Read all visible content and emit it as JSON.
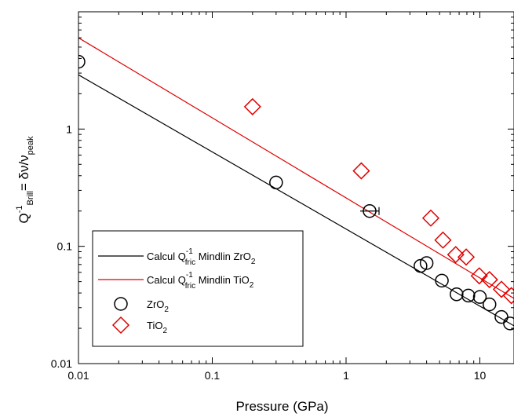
{
  "chart_data": {
    "type": "scatter",
    "title": "",
    "xlabel": "Pressure (GPa)",
    "ylabel": {
      "main": "Q",
      "sup": "-1",
      "sub": "Brill",
      "rest": "= δν/ν",
      "sub2": "peak"
    },
    "xscale": "log",
    "yscale": "log",
    "xlim": [
      0.01,
      18
    ],
    "ylim": [
      0.01,
      10
    ],
    "x_ticks": [
      {
        "value": 0.01,
        "label": "0.01"
      },
      {
        "value": 0.1,
        "label": "0.1"
      },
      {
        "value": 1,
        "label": "1"
      },
      {
        "value": 10,
        "label": "10"
      }
    ],
    "y_ticks": [
      {
        "value": 0.01,
        "label": "0.01"
      },
      {
        "value": 0.1,
        "label": "0.1"
      },
      {
        "value": 1,
        "label": "1"
      }
    ],
    "legend_position": "bottom-left",
    "series": [
      {
        "name": "Calcul Q fric Mindlin ZrO2",
        "legend": {
          "pre": "Calcul Q",
          "sup": "-1",
          "sub": "fric",
          "post": " Mindlin ZrO",
          "post_sub": "2"
        },
        "kind": "line",
        "color": "#000000",
        "x": [
          0.01,
          18
        ],
        "y": [
          2.9,
          0.021
        ]
      },
      {
        "name": "Calcul Q fric Mindlin TiO2",
        "legend": {
          "pre": "Calcul Q",
          "sup": "-1",
          "sub": "fric",
          "post": " Mindlin TiO",
          "post_sub": "2"
        },
        "kind": "line",
        "color": "#e00000",
        "x": [
          0.01,
          18
        ],
        "y": [
          6.0,
          0.036
        ]
      },
      {
        "name": "ZrO2",
        "legend": {
          "pre": "ZrO",
          "sub": "2"
        },
        "kind": "marker",
        "marker": "circle",
        "color": "#000000",
        "x": [
          0.01,
          0.3,
          1.5,
          3.6,
          4.0,
          5.2,
          6.7,
          8.2,
          10.0,
          11.8,
          14.5,
          16.8
        ],
        "y": [
          3.75,
          0.35,
          0.2,
          0.068,
          0.072,
          0.051,
          0.039,
          0.038,
          0.037,
          0.032,
          0.025,
          0.022
        ]
      },
      {
        "name": "TiO2",
        "legend": {
          "pre": "TiO",
          "sub": "2"
        },
        "kind": "marker",
        "marker": "diamond",
        "color": "#e00000",
        "x": [
          0.2,
          1.3,
          4.3,
          5.3,
          6.6,
          7.9,
          9.9,
          11.8,
          14.5,
          17.2
        ],
        "y": [
          1.55,
          0.44,
          0.174,
          0.113,
          0.085,
          0.081,
          0.056,
          0.052,
          0.043,
          0.038
        ]
      }
    ]
  }
}
